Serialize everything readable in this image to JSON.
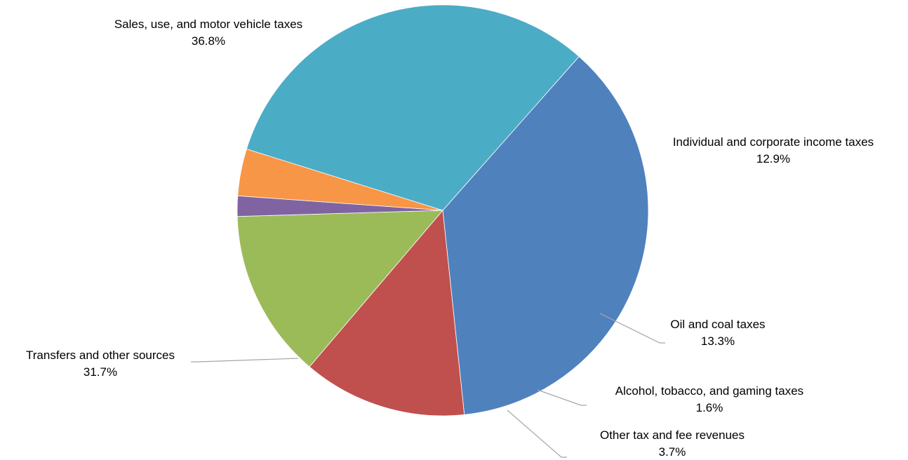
{
  "chart_data": {
    "type": "pie",
    "title": "",
    "slices": [
      {
        "label": "Sales, use, and motor vehicle taxes",
        "value": 36.8,
        "value_label": "36.8%",
        "color": "#4f81bd"
      },
      {
        "label": "Individual and corporate income taxes",
        "value": 12.9,
        "value_label": "12.9%",
        "color": "#c0504d"
      },
      {
        "label": "Oil and coal taxes",
        "value": 13.3,
        "value_label": "13.3%",
        "color": "#9bbb59"
      },
      {
        "label": "Alcohol, tobacco, and gaming taxes",
        "value": 1.6,
        "value_label": "1.6%",
        "color": "#8064a2"
      },
      {
        "label": "Other tax and fee revenues",
        "value": 3.7,
        "value_label": "3.7%",
        "color": "#f79646"
      },
      {
        "label": "Transfers and other sources",
        "value": 31.7,
        "value_label": "31.7%",
        "color": "#4bacc6"
      }
    ],
    "legend": "none"
  }
}
